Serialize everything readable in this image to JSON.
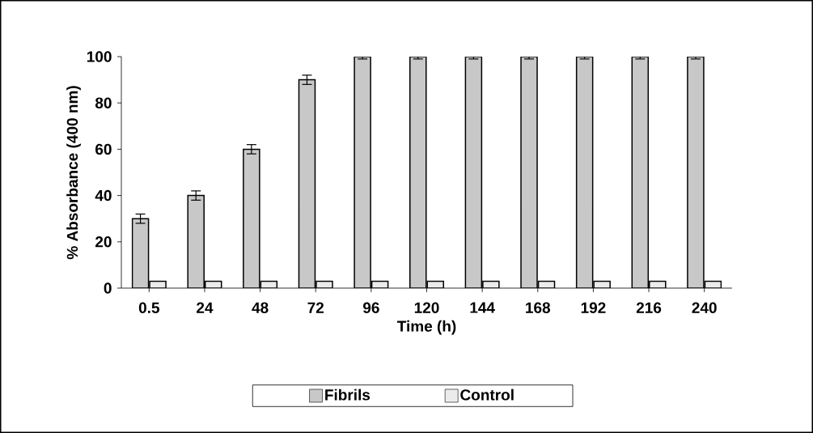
{
  "chart_data": {
    "type": "bar",
    "xlabel": "Time (h)",
    "ylabel": "% Absorbance (400 nm)",
    "categories": [
      "0.5",
      "24",
      "48",
      "72",
      "96",
      "120",
      "144",
      "168",
      "192",
      "216",
      "240"
    ],
    "series": [
      {
        "name": "Fibrils",
        "color": "#c8c8c8",
        "values": [
          30,
          40,
          60,
          90,
          100,
          100,
          100,
          100,
          100,
          100,
          100
        ],
        "errors": [
          2,
          2,
          2,
          2,
          1,
          1,
          1,
          1,
          1,
          1,
          1
        ]
      },
      {
        "name": "Control",
        "color": "#ebebeb",
        "values": [
          3,
          3,
          3,
          3,
          3,
          3,
          3,
          3,
          3,
          3,
          3
        ]
      }
    ],
    "ylim": [
      0,
      100
    ],
    "yticks": [
      0,
      20,
      40,
      60,
      80,
      100
    ],
    "grid": false,
    "legend": "bottom"
  }
}
